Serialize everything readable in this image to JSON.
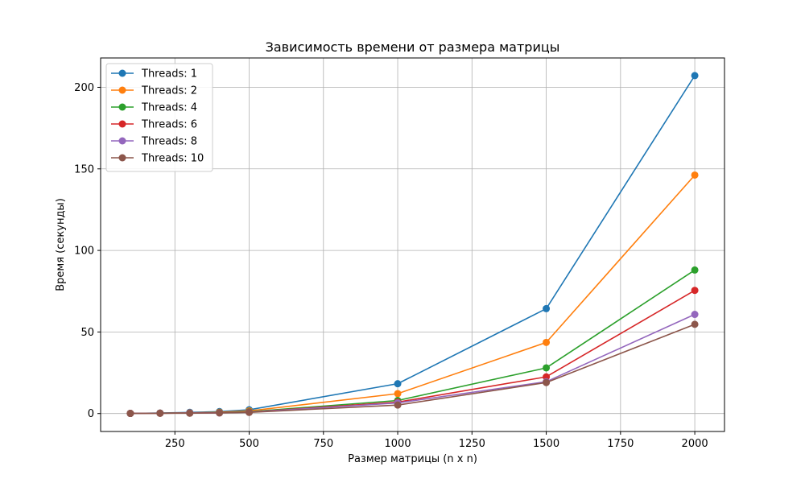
{
  "chart_data": {
    "type": "line",
    "title": "Зависимость времени от размера матрицы",
    "xlabel": "Размер матрицы (n x n)",
    "ylabel": "Время (секунды)",
    "x": [
      100,
      200,
      300,
      400,
      500,
      1000,
      1500,
      2000
    ],
    "xlim": [
      0,
      2100
    ],
    "ylim": [
      -11,
      218
    ],
    "xticks": [
      250,
      500,
      750,
      1000,
      1250,
      1500,
      1750,
      2000
    ],
    "yticks": [
      0,
      50,
      100,
      150,
      200
    ],
    "grid": true,
    "legend": "top-left",
    "series": [
      {
        "name": "Threads: 1",
        "color": "#1f77b4",
        "values": [
          0.1,
          0.3,
          0.7,
          1.2,
          2.3,
          18.3,
          64.3,
          207.2
        ]
      },
      {
        "name": "Threads: 2",
        "color": "#ff7f0e",
        "values": [
          0.1,
          0.2,
          0.4,
          0.8,
          1.6,
          12.2,
          43.6,
          146.2
        ]
      },
      {
        "name": "Threads: 4",
        "color": "#2ca02c",
        "values": [
          0.1,
          0.2,
          0.3,
          0.6,
          1.1,
          8.0,
          28.0,
          88.0
        ]
      },
      {
        "name": "Threads: 6",
        "color": "#d62728",
        "values": [
          0.1,
          0.2,
          0.3,
          0.5,
          0.9,
          7.0,
          22.5,
          75.5
        ]
      },
      {
        "name": "Threads: 8",
        "color": "#9467bd",
        "values": [
          0.1,
          0.2,
          0.3,
          0.4,
          0.8,
          6.5,
          19.5,
          60.8
        ]
      },
      {
        "name": "Threads: 10",
        "color": "#8c564b",
        "values": [
          0.1,
          0.2,
          0.2,
          0.4,
          0.7,
          5.2,
          19.0,
          54.7
        ]
      }
    ]
  }
}
